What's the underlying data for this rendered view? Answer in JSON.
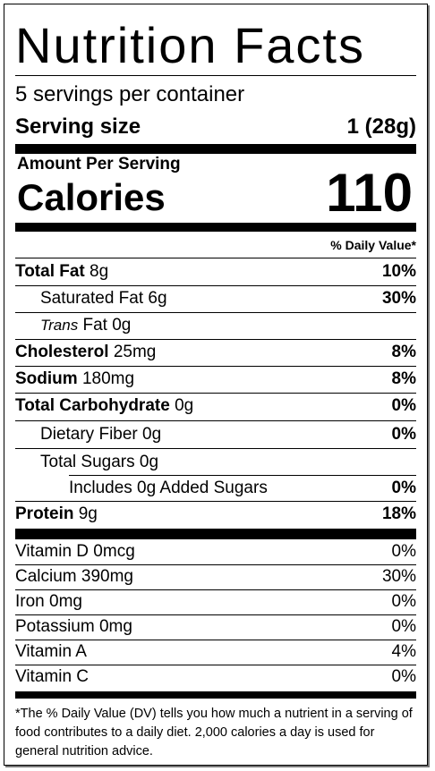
{
  "title": "Nutrition Facts",
  "servings_per_container": "5 servings per container",
  "serving_size_label": "Serving size",
  "serving_size_value": "1  (28g)",
  "amount_per_serving": "Amount Per Serving",
  "calories_label": "Calories",
  "calories_value": "110",
  "daily_value_header": "% Daily Value*",
  "nutrients": [
    {
      "name": "Total Fat",
      "amount": "8g",
      "dv": "10%"
    },
    {
      "name": "Saturated Fat",
      "amount": "6g",
      "dv": "30%"
    },
    {
      "name": "Trans",
      "name_suffix": "Fat",
      "amount": "0g",
      "dv": ""
    },
    {
      "name": "Cholesterol",
      "amount": "25mg",
      "dv": "8%"
    },
    {
      "name": "Sodium",
      "amount": "180mg",
      "dv": "8%"
    },
    {
      "name": "Total Carbohydrate",
      "amount": "0g",
      "dv": "0%"
    },
    {
      "name": "Dietary Fiber",
      "amount": "0g",
      "dv": "0%"
    },
    {
      "name": "Total Sugars",
      "amount": "0g",
      "dv": ""
    },
    {
      "name": "Includes 0g Added Sugars",
      "amount": "",
      "dv": "0%"
    },
    {
      "name": "Protein",
      "amount": "9g",
      "dv": "18%"
    }
  ],
  "vitamins": [
    {
      "name": "Vitamin D",
      "amount": "0mcg",
      "dv": "0%"
    },
    {
      "name": "Calcium",
      "amount": "390mg",
      "dv": "30%"
    },
    {
      "name": "Iron",
      "amount": "0mg",
      "dv": "0%"
    },
    {
      "name": "Potassium",
      "amount": "0mg",
      "dv": "0%"
    },
    {
      "name": "Vitamin A",
      "amount": "",
      "dv": "4%"
    },
    {
      "name": "Vitamin C",
      "amount": "",
      "dv": "0%"
    }
  ],
  "footnote": "*The % Daily Value (DV) tells you how much a nutrient in a serving of food contributes to a daily diet. 2,000 calories a day is used for general nutrition advice."
}
